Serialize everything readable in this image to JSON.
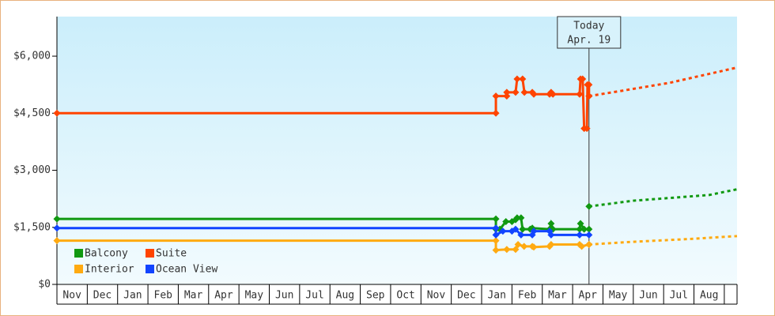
{
  "chart_data": {
    "type": "line",
    "categories": [
      "Nov",
      "Dec",
      "Jan",
      "Feb",
      "Mar",
      "Apr",
      "May",
      "Jun",
      "Jul",
      "Aug",
      "Sep",
      "Oct",
      "Nov",
      "Dec",
      "Jan",
      "Feb",
      "Mar",
      "Apr",
      "May",
      "Jun",
      "Jul",
      "Aug"
    ],
    "xlim": [
      0,
      22.42
    ],
    "ylim": [
      0,
      7040
    ],
    "yticks": [
      {
        "value": 0,
        "label": "$0"
      },
      {
        "value": 1500,
        "label": "$1,500"
      },
      {
        "value": 3000,
        "label": "$3,000"
      },
      {
        "value": 4500,
        "label": "$4,500"
      },
      {
        "value": 6000,
        "label": "$6,000"
      }
    ],
    "legend": "lower left",
    "annotation": {
      "x": 17.54,
      "lines": [
        "Today",
        "Apr. 19"
      ]
    },
    "series": [
      {
        "name": "Balcony",
        "color": "#119911",
        "x": [
          0,
          14.47,
          14.47,
          14.6,
          14.8,
          15.0,
          15.12,
          15.17,
          15.3,
          15.35,
          15.6,
          15.67,
          16.24,
          16.29,
          16.35,
          17.23,
          17.26,
          17.38,
          17.54
        ],
        "values": [
          1720,
          1720,
          1450,
          1450,
          1650,
          1650,
          1700,
          1750,
          1750,
          1450,
          1450,
          1480,
          1450,
          1600,
          1450,
          1450,
          1600,
          1450,
          1450
        ],
        "forecast": {
          "x": [
            17.54,
            19,
            21.5,
            22.42
          ],
          "values": [
            2050,
            2200,
            2350,
            2500
          ]
        }
      },
      {
        "name": "Suite",
        "color": "#ff4400",
        "x": [
          0,
          14.47,
          14.47,
          14.83,
          14.83,
          15.12,
          15.17,
          15.35,
          15.41,
          15.67,
          15.72,
          16.24,
          16.29,
          16.35,
          17.23,
          17.26,
          17.33,
          17.38,
          17.47,
          17.49,
          17.54,
          17.54
        ],
        "values": [
          4500,
          4500,
          4950,
          4950,
          5050,
          5050,
          5400,
          5400,
          5050,
          5050,
          5000,
          5000,
          5050,
          5000,
          5000,
          5400,
          5400,
          4100,
          4100,
          5250,
          5250,
          4950
        ],
        "forecast": {
          "x": [
            17.54,
            18.7,
            20.2,
            22.42
          ],
          "values": [
            4950,
            5100,
            5300,
            5700
          ]
        }
      },
      {
        "name": "Interior",
        "color": "#ffaa11",
        "x": [
          0,
          14.47,
          14.47,
          14.83,
          15.12,
          15.2,
          15.4,
          15.67,
          15.72,
          16.24,
          16.29,
          17.23,
          17.3,
          17.54
        ],
        "values": [
          1150,
          1150,
          900,
          920,
          920,
          1050,
          1000,
          1000,
          980,
          1000,
          1050,
          1050,
          1000,
          1050
        ],
        "forecast": {
          "x": [
            17.54,
            19,
            21,
            22.42
          ],
          "values": [
            1050,
            1120,
            1200,
            1270
          ]
        }
      },
      {
        "name": "Ocean View",
        "color": "#1144ff",
        "x": [
          0,
          14.47,
          14.47,
          14.7,
          15.0,
          15.12,
          15.3,
          15.67,
          15.72,
          16.24,
          16.29,
          17.23,
          17.54
        ],
        "values": [
          1480,
          1480,
          1300,
          1400,
          1400,
          1450,
          1300,
          1300,
          1400,
          1400,
          1300,
          1300,
          1300
        ]
      }
    ]
  }
}
